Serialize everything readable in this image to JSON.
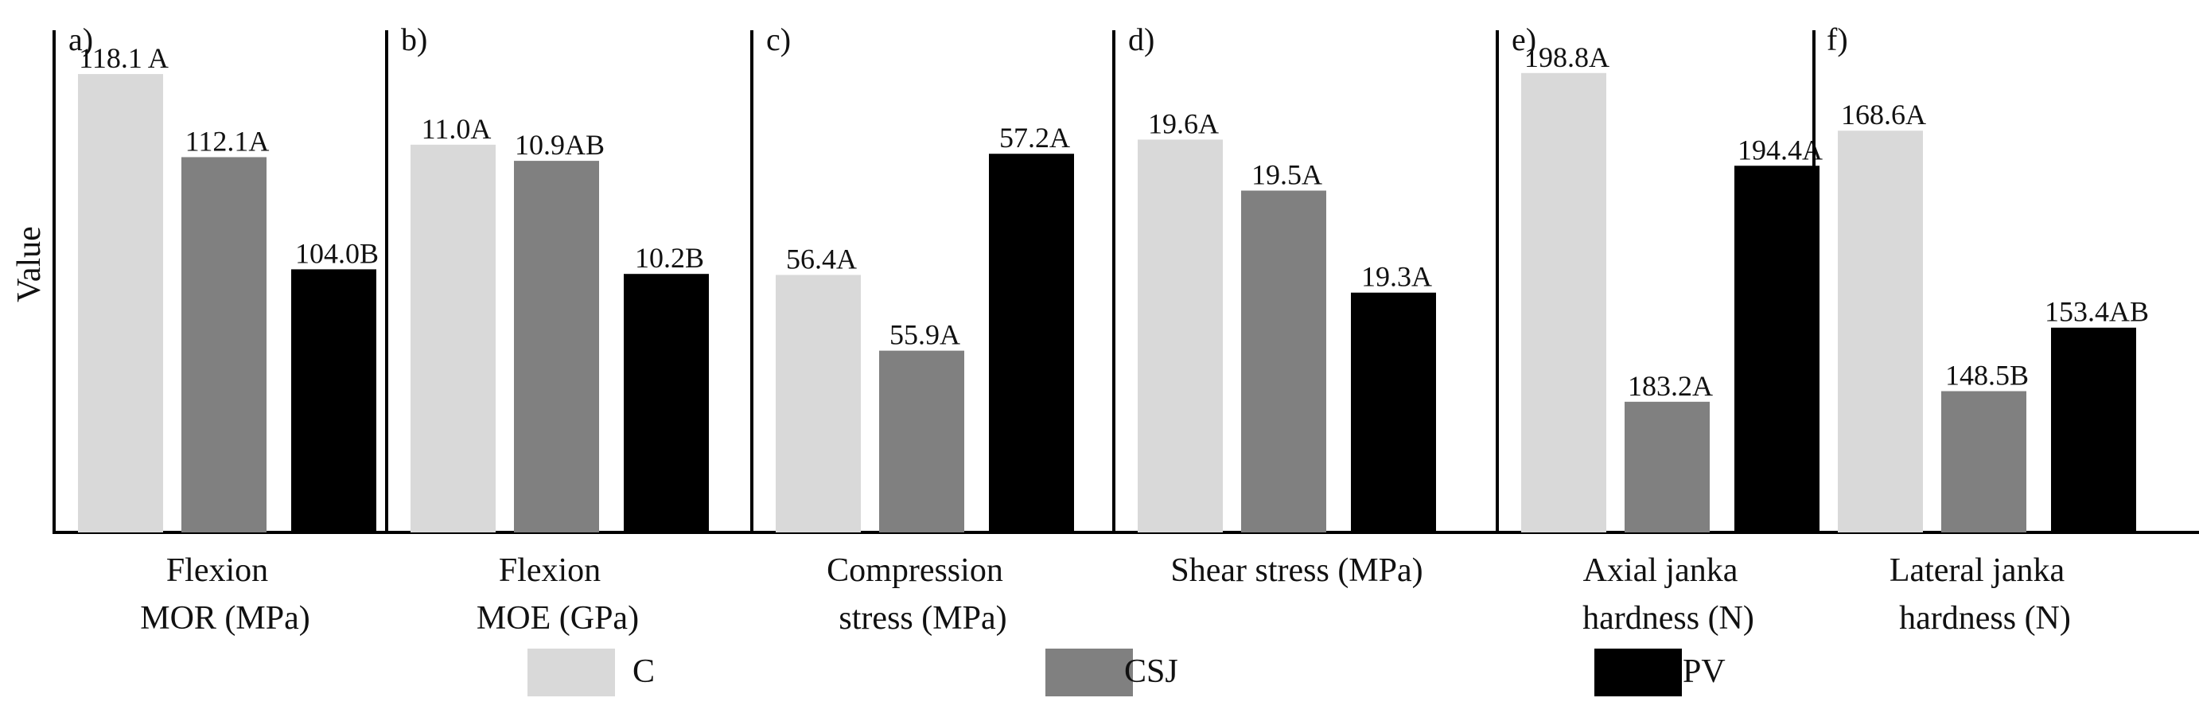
{
  "chart_data": {
    "type": "bar",
    "ylabel": "Value",
    "series_order": [
      "C",
      "CSJ",
      "PV"
    ],
    "colors": {
      "C": "#d9d9d9",
      "CSJ": "#808080",
      "PV": "#000000"
    },
    "panels": [
      {
        "letter": "a)",
        "category_lines": [
          "Flexion",
          "MOR (MPa)"
        ],
        "ylim": [
          85,
          120
        ],
        "bars": [
          {
            "series": "C",
            "value": 118.1,
            "label": "118.1 A"
          },
          {
            "series": "CSJ",
            "value": 112.1,
            "label": "112.1A"
          },
          {
            "series": "PV",
            "value": 104.0,
            "label": "104.0B"
          }
        ]
      },
      {
        "letter": "b)",
        "category_lines": [
          "Flexion",
          "MOE (GPa)"
        ],
        "ylim": [
          8.6,
          11.6
        ],
        "bars": [
          {
            "series": "C",
            "value": 11.0,
            "label": "11.0A"
          },
          {
            "series": "CSJ",
            "value": 10.9,
            "label": "10.9AB"
          },
          {
            "series": "PV",
            "value": 10.2,
            "label": "10.2B"
          }
        ]
      },
      {
        "letter": "c)",
        "category_lines": [
          "Compression",
          "stress (MPa)"
        ],
        "ylim": [
          54.7,
          57.9
        ],
        "bars": [
          {
            "series": "C",
            "value": 56.4,
            "label": "56.4A"
          },
          {
            "series": "CSJ",
            "value": 55.9,
            "label": "55.9A"
          },
          {
            "series": "PV",
            "value": 57.2,
            "label": "57.2A"
          }
        ]
      },
      {
        "letter": "d)",
        "category_lines": [
          "Shear stress (MPa)"
        ],
        "ylim": [
          18.83,
          19.78
        ],
        "bars": [
          {
            "series": "C",
            "value": 19.6,
            "label": "19.6A"
          },
          {
            "series": "CSJ",
            "value": 19.5,
            "label": "19.5A"
          },
          {
            "series": "PV",
            "value": 19.3,
            "label": "19.3A"
          }
        ]
      },
      {
        "letter": "e)",
        "category_lines": [
          "Axial janka",
          "hardness (N)"
        ],
        "ylim": [
          177,
          200
        ],
        "bars": [
          {
            "series": "C",
            "value": 198.8,
            "label": "198.8A"
          },
          {
            "series": "CSJ",
            "value": 183.2,
            "label": "183.2A"
          },
          {
            "series": "PV",
            "value": 194.4,
            "label": "194.4A"
          }
        ]
      },
      {
        "letter": "f)",
        "category_lines": [
          "Lateral janka",
          "hardness (N)"
        ],
        "ylim": [
          137.6,
          175
        ],
        "bars": [
          {
            "series": "C",
            "value": 168.6,
            "label": "168.6A"
          },
          {
            "series": "CSJ",
            "value": 148.5,
            "label": "148.5B"
          },
          {
            "series": "PV",
            "value": 153.4,
            "label": "153.4AB"
          }
        ]
      }
    ],
    "legend": [
      {
        "series": "C",
        "label": "C"
      },
      {
        "series": "CSJ",
        "label": "CSJ"
      },
      {
        "series": "PV",
        "label": "PV"
      }
    ]
  }
}
